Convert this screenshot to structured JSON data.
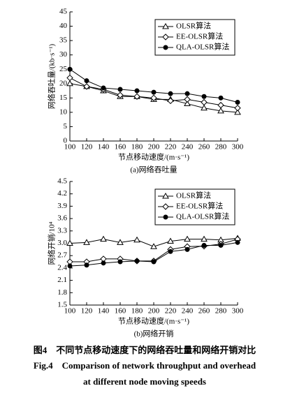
{
  "chart_data": [
    {
      "type": "line",
      "subtitle": "(a)网络吞吐量",
      "xlabel": "节点移动速度/(m·s⁻¹)",
      "ylabel": "网络吞吐量/(kb·s⁻¹)",
      "x": [
        100,
        120,
        140,
        160,
        180,
        200,
        220,
        240,
        260,
        280,
        300
      ],
      "xlim": [
        100,
        300
      ],
      "xticks": [
        100,
        120,
        140,
        160,
        180,
        200,
        220,
        240,
        260,
        280,
        300
      ],
      "ylim": [
        0,
        45
      ],
      "yticks": [
        0,
        5,
        10,
        15,
        20,
        25,
        30,
        35,
        40,
        45
      ],
      "legend": "upper right",
      "series": [
        {
          "name": "OLSR算法",
          "color": "#000000",
          "marker": "triangle",
          "values": [
            20,
            19,
            17.5,
            15.5,
            15.5,
            14.5,
            14.5,
            13,
            11.5,
            10.5,
            10
          ]
        },
        {
          "name": "EE-OLSR算法",
          "color": "#000000",
          "marker": "diamond",
          "values": [
            22,
            19,
            18,
            16,
            15.5,
            15,
            14,
            14.5,
            13.5,
            12.5,
            11.5
          ]
        },
        {
          "name": "QLA-OLSR算法",
          "color": "#000000",
          "marker": "star",
          "values": [
            25,
            21,
            18.5,
            18,
            17.5,
            17,
            16.5,
            16.5,
            15.5,
            15,
            13.5
          ]
        }
      ]
    },
    {
      "type": "line",
      "subtitle": "(b)网络开销",
      "xlabel": "节点移动速度/(m·s⁻¹)",
      "ylabel": "网络开销/10⁴",
      "x": [
        100,
        120,
        140,
        160,
        180,
        200,
        220,
        240,
        260,
        280,
        300
      ],
      "xlim": [
        100,
        300
      ],
      "xticks": [
        100,
        120,
        140,
        160,
        180,
        200,
        220,
        240,
        260,
        280,
        300
      ],
      "ylim": [
        1.5,
        4.5
      ],
      "yticks": [
        1.5,
        1.8,
        2.1,
        2.4,
        2.7,
        {
          "value": 3,
          "label": "3.0"
        },
        3.3,
        3.6,
        3.9,
        4.2,
        4.5
      ],
      "legend": "upper right",
      "series": [
        {
          "name": "OLSR算法",
          "color": "#000000",
          "marker": "triangle",
          "values": [
            3.0,
            3.02,
            3.1,
            3.02,
            3.08,
            2.92,
            3.05,
            3.1,
            3.1,
            3.08,
            3.12
          ]
        },
        {
          "name": "EE-OLSR算法",
          "color": "#000000",
          "marker": "diamond",
          "values": [
            2.55,
            2.55,
            2.62,
            2.62,
            2.57,
            2.57,
            2.85,
            2.92,
            2.93,
            2.98,
            3.1
          ]
        },
        {
          "name": "QLA-OLSR算法",
          "color": "#000000",
          "marker": "star",
          "values": [
            2.45,
            2.47,
            2.52,
            2.55,
            2.57,
            2.55,
            2.8,
            2.85,
            2.95,
            2.95,
            3.02
          ]
        }
      ]
    }
  ],
  "caption": {
    "cn": "图4　不同节点移动速度下的网络吞吐量和网络开销对比",
    "en1": "Fig.4　Comparison of network throughput and overhead",
    "en2": "at different node moving speeds"
  }
}
